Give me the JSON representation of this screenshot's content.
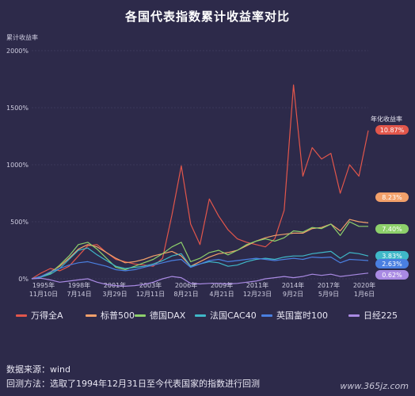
{
  "chart_data": {
    "type": "line",
    "title": "各国代表指数累计收益率对比",
    "ylabel": "累计收益率",
    "ylim": [
      0,
      2000
    ],
    "yticks": [
      "0%",
      "500%",
      "1000%",
      "1500%",
      "2000%"
    ],
    "xticks": [
      {
        "year": "1995年",
        "date": "11月10日"
      },
      {
        "year": "1998年",
        "date": "7月14日"
      },
      {
        "year": "2001年",
        "date": "3月29日"
      },
      {
        "year": "2003年",
        "date": "12月11日"
      },
      {
        "year": "2006年",
        "date": "8月21日"
      },
      {
        "year": "2009年",
        "date": "4月21日"
      },
      {
        "year": "2011年",
        "date": "12月23日"
      },
      {
        "year": "2014年",
        "date": "9月2日"
      },
      {
        "year": "2017年",
        "date": "5月9日"
      },
      {
        "year": "2020年",
        "date": "1月6日"
      }
    ],
    "annotation_title": "年化收益率",
    "series": [
      {
        "name": "万得全A",
        "color": "#e2564b",
        "annual_return": "10.87%",
        "values": [
          0,
          50,
          90,
          70,
          110,
          200,
          290,
          300,
          230,
          170,
          150,
          130,
          120,
          110,
          180,
          560,
          990,
          480,
          300,
          700,
          550,
          430,
          350,
          320,
          300,
          280,
          350,
          600,
          1700,
          900,
          1150,
          1050,
          1100,
          750,
          1000,
          900,
          1300
        ]
      },
      {
        "name": "标普500",
        "color": "#f2a06a",
        "annual_return": "8.23%",
        "values": [
          0,
          20,
          60,
          110,
          180,
          260,
          300,
          280,
          230,
          180,
          140,
          150,
          170,
          200,
          220,
          240,
          200,
          110,
          150,
          190,
          220,
          230,
          250,
          290,
          330,
          360,
          380,
          390,
          400,
          400,
          440,
          450,
          480,
          420,
          520,
          500,
          490
        ]
      },
      {
        "name": "德国DAX",
        "color": "#8dd06b",
        "annual_return": "7.40%",
        "values": [
          0,
          15,
          50,
          120,
          200,
          300,
          320,
          260,
          180,
          100,
          80,
          110,
          140,
          170,
          220,
          280,
          320,
          150,
          180,
          230,
          250,
          210,
          250,
          300,
          330,
          350,
          330,
          360,
          420,
          410,
          450,
          440,
          480,
          380,
          500,
          460,
          460
        ]
      },
      {
        "name": "法国CAC40",
        "color": "#3fb8c8",
        "annual_return": "3.83%",
        "values": [
          0,
          15,
          40,
          90,
          170,
          250,
          270,
          210,
          160,
          110,
          90,
          100,
          110,
          130,
          160,
          200,
          220,
          110,
          130,
          150,
          140,
          110,
          120,
          150,
          170,
          180,
          170,
          190,
          200,
          200,
          220,
          230,
          240,
          180,
          230,
          220,
          200
        ]
      },
      {
        "name": "英国富时100",
        "color": "#4a7fe0",
        "annual_return": "2.63%",
        "values": [
          0,
          20,
          60,
          90,
          120,
          140,
          150,
          130,
          110,
          80,
          70,
          80,
          100,
          120,
          140,
          160,
          170,
          100,
          130,
          160,
          170,
          150,
          160,
          170,
          180,
          170,
          160,
          170,
          180,
          170,
          190,
          185,
          190,
          140,
          170,
          165,
          160
        ]
      },
      {
        "name": "日经225",
        "color": "#a98ae3",
        "annual_return": "0.62%",
        "values": [
          0,
          5,
          -10,
          -30,
          -20,
          -10,
          0,
          -30,
          -50,
          -60,
          -65,
          -60,
          -50,
          -30,
          0,
          20,
          10,
          -40,
          -45,
          -40,
          -40,
          -45,
          -40,
          -30,
          -20,
          0,
          10,
          20,
          10,
          20,
          40,
          30,
          40,
          20,
          30,
          40,
          50
        ]
      }
    ]
  },
  "footer": {
    "source": "数据来源：wind",
    "method": "回测方法：选取了1994年12月31日至今代表国家的指数进行回测"
  },
  "watermark": "www.365jz.com"
}
